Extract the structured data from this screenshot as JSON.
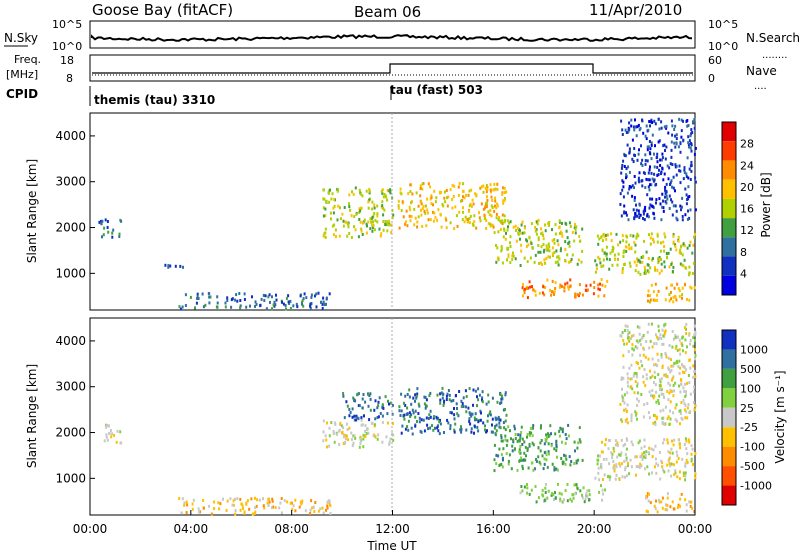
{
  "header": {
    "title": "Goose Bay (fitACF)",
    "beam": "Beam 06",
    "date": "11/Apr/2010"
  },
  "noise_panel": {
    "left_label": "N.Sky",
    "right_label": "N.Search",
    "left_ticks": [
      "10^5",
      "10^0"
    ],
    "right_ticks": [
      "10^5",
      "10^0"
    ],
    "legend_marker": "........"
  },
  "freq_panel": {
    "left_label_line1": "Freq.",
    "left_label_line2": "[MHz]",
    "right_label": "Nave",
    "left_ticks": [
      "18",
      "8"
    ],
    "right_ticks": [
      "60",
      "0"
    ],
    "legend_marker": "...."
  },
  "cpid": {
    "label": "CPID",
    "segments": [
      {
        "name": "themis (tau) 3310",
        "start_hour": 0
      },
      {
        "name": "tau (fast) 503",
        "start_hour": 12
      }
    ]
  },
  "colorbars": {
    "power": {
      "label": "Power [dB]",
      "ticks": [
        "28",
        "24",
        "20",
        "16",
        "12",
        "8",
        "4"
      ],
      "colors": [
        "#e00000",
        "#ff3c00",
        "#ff8c00",
        "#ffc000",
        "#b0d000",
        "#40a040",
        "#3070a0",
        "#1030c0",
        "#0000e0"
      ]
    },
    "velocity": {
      "label": "Velocity [m s⁻¹]",
      "ticks": [
        "1000",
        "500",
        "100",
        "25",
        "-25",
        "-100",
        "-500",
        "-1000"
      ],
      "colors": [
        "#1030c0",
        "#3070a0",
        "#40a040",
        "#80d040",
        "#c8c8c8",
        "#ffc000",
        "#ff8c00",
        "#ff5000",
        "#e00000"
      ]
    }
  },
  "chart_data": [
    {
      "type": "heatmap",
      "panel": "power",
      "ylabel": "Slant Range [km]",
      "yticks": [
        1000,
        2000,
        3000,
        4000
      ],
      "ylim": [
        200,
        4500
      ],
      "xlim": [
        0,
        24
      ],
      "blobs": [
        {
          "x": [
            0.3,
            1.2
          ],
          "y": [
            1800,
            2200
          ],
          "level": 2
        },
        {
          "x": [
            2.5,
            3.8
          ],
          "y": [
            1150,
            1250
          ],
          "level": 1
        },
        {
          "x": [
            3.5,
            9.5
          ],
          "y": [
            250,
            600
          ],
          "level": 2
        },
        {
          "x": [
            9.2,
            12.0
          ],
          "y": [
            1800,
            2900
          ],
          "level": 4
        },
        {
          "x": [
            12.2,
            16.5
          ],
          "y": [
            2000,
            3000
          ],
          "level": 5
        },
        {
          "x": [
            16.0,
            19.5
          ],
          "y": [
            1200,
            2200
          ],
          "level": 4
        },
        {
          "x": [
            17.0,
            20.5
          ],
          "y": [
            500,
            900
          ],
          "level": 6
        },
        {
          "x": [
            20.0,
            24.0
          ],
          "y": [
            1000,
            1900
          ],
          "level": 4
        },
        {
          "x": [
            21.0,
            24.0
          ],
          "y": [
            2200,
            4400
          ],
          "level": 1
        },
        {
          "x": [
            22.0,
            24.0
          ],
          "y": [
            400,
            800
          ],
          "level": 5
        }
      ]
    },
    {
      "type": "heatmap",
      "panel": "velocity",
      "ylabel": "Slant Range [km]",
      "yticks": [
        1000,
        2000,
        3000,
        4000
      ],
      "ylim": [
        200,
        4500
      ],
      "xlim": [
        0,
        24
      ],
      "blobs": [
        {
          "x": [
            0.3,
            1.2
          ],
          "y": [
            1800,
            2200
          ],
          "level": 4
        },
        {
          "x": [
            3.5,
            9.5
          ],
          "y": [
            250,
            600
          ],
          "level": 3
        },
        {
          "x": [
            9.2,
            12.0
          ],
          "y": [
            1700,
            2300
          ],
          "level": 4
        },
        {
          "x": [
            10.0,
            12.0
          ],
          "y": [
            2300,
            2900
          ],
          "level": 7
        },
        {
          "x": [
            12.2,
            16.5
          ],
          "y": [
            2000,
            3000
          ],
          "level": 7
        },
        {
          "x": [
            16.0,
            19.5
          ],
          "y": [
            1200,
            2200
          ],
          "level": 6
        },
        {
          "x": [
            17.0,
            20.5
          ],
          "y": [
            500,
            900
          ],
          "level": 5
        },
        {
          "x": [
            20.0,
            24.0
          ],
          "y": [
            1000,
            1900
          ],
          "level": 4
        },
        {
          "x": [
            21.0,
            24.0
          ],
          "y": [
            2200,
            4400
          ],
          "level": 4
        },
        {
          "x": [
            22.0,
            24.0
          ],
          "y": [
            300,
            700
          ],
          "level": 3
        }
      ]
    }
  ],
  "xaxis": {
    "label": "Time UT",
    "ticks": [
      "00:00",
      "04:00",
      "08:00",
      "12:00",
      "16:00",
      "20:00",
      "00:00"
    ]
  }
}
